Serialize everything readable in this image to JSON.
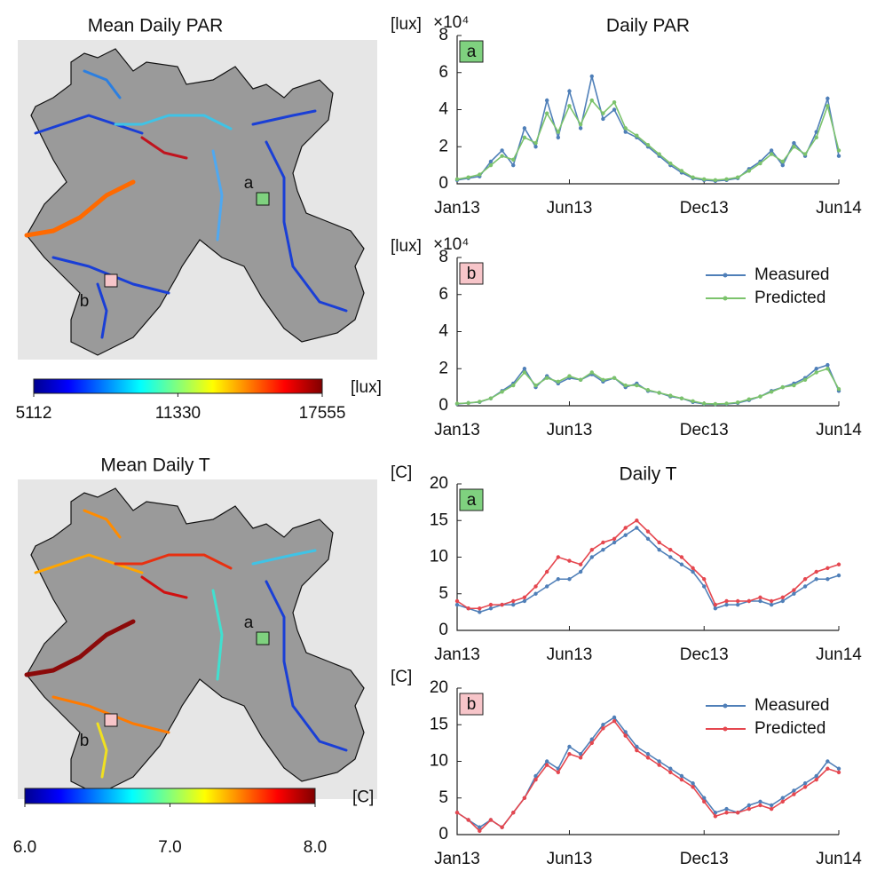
{
  "chart_data": [
    {
      "type": "map",
      "title": "Mean Daily PAR",
      "colorbar_label": "[lux]",
      "clim": [
        5112,
        17555
      ],
      "cticks": [
        5112,
        11330,
        17555
      ],
      "sites": [
        {
          "label": "a",
          "color": "#7fd17f"
        },
        {
          "label": "b",
          "color": "#f7c5c9"
        }
      ]
    },
    {
      "type": "line",
      "title": "Daily PAR",
      "ylabel": "[lux]",
      "y_multiplier": "×10⁴",
      "tag": "a",
      "tag_color": "#7fd17f",
      "x": [
        0,
        0.5,
        1,
        1.5,
        2,
        2.5,
        3,
        3.5,
        4,
        4.5,
        5,
        5.5,
        6,
        6.5,
        7,
        7.5,
        8,
        8.5,
        9,
        9.5,
        10,
        10.5,
        11,
        11.5,
        12,
        12.5,
        13,
        13.5,
        14,
        14.5,
        15,
        15.5,
        16,
        16.5,
        17
      ],
      "xlim": [
        0,
        17
      ],
      "xticks": [
        {
          "value": 0,
          "label": "Jan13"
        },
        {
          "value": 5,
          "label": "Jun13"
        },
        {
          "value": 11,
          "label": "Dec13"
        },
        {
          "value": 17,
          "label": "Jun14"
        }
      ],
      "ylim": [
        0,
        80000
      ],
      "yticks": [
        {
          "value": 0,
          "label": "0"
        },
        {
          "value": 20000,
          "label": "2"
        },
        {
          "value": 40000,
          "label": "4"
        },
        {
          "value": 60000,
          "label": "6"
        },
        {
          "value": 80000,
          "label": "8"
        }
      ],
      "series": [
        {
          "name": "Measured",
          "color": "#4f7fb8",
          "values": [
            2000,
            3000,
            4000,
            12000,
            18000,
            10000,
            30000,
            20000,
            45000,
            25000,
            50000,
            30000,
            58000,
            35000,
            40000,
            28000,
            25000,
            20000,
            15000,
            10000,
            6000,
            3000,
            2000,
            1500,
            2000,
            3000,
            8000,
            12000,
            18000,
            10000,
            22000,
            15000,
            28000,
            46000,
            15000
          ]
        },
        {
          "name": "Predicted",
          "color": "#7cc36c",
          "values": [
            2500,
            3500,
            5000,
            10000,
            15000,
            13000,
            25000,
            22000,
            38000,
            28000,
            42000,
            32000,
            45000,
            38000,
            44000,
            30000,
            26000,
            21000,
            16000,
            11000,
            7000,
            3500,
            2500,
            2000,
            2500,
            3500,
            7000,
            11000,
            16000,
            12000,
            20000,
            16000,
            25000,
            42000,
            18000
          ]
        }
      ]
    },
    {
      "type": "line",
      "ylabel": "[lux]",
      "y_multiplier": "×10⁴",
      "tag": "b",
      "tag_color": "#f7c5c9",
      "legend": "upper right",
      "x": [
        0,
        0.5,
        1,
        1.5,
        2,
        2.5,
        3,
        3.5,
        4,
        4.5,
        5,
        5.5,
        6,
        6.5,
        7,
        7.5,
        8,
        8.5,
        9,
        9.5,
        10,
        10.5,
        11,
        11.5,
        12,
        12.5,
        13,
        13.5,
        14,
        14.5,
        15,
        15.5,
        16,
        16.5,
        17
      ],
      "xlim": [
        0,
        17
      ],
      "xticks": [
        {
          "value": 0,
          "label": "Jan13"
        },
        {
          "value": 5,
          "label": "Jun13"
        },
        {
          "value": 11,
          "label": "Dec13"
        },
        {
          "value": 17,
          "label": "Jun14"
        }
      ],
      "ylim": [
        0,
        80000
      ],
      "yticks": [
        {
          "value": 0,
          "label": "0"
        },
        {
          "value": 20000,
          "label": "2"
        },
        {
          "value": 40000,
          "label": "4"
        },
        {
          "value": 60000,
          "label": "6"
        },
        {
          "value": 80000,
          "label": "8"
        }
      ],
      "series": [
        {
          "name": "Measured",
          "color": "#4f7fb8",
          "values": [
            1000,
            1500,
            2000,
            4000,
            8000,
            12000,
            20000,
            10000,
            16000,
            12000,
            15000,
            14000,
            17000,
            13000,
            15000,
            10000,
            12000,
            8000,
            7000,
            5000,
            4000,
            2000,
            1000,
            800,
            1000,
            1500,
            3000,
            5000,
            8000,
            10000,
            12000,
            15000,
            20000,
            22000,
            8000
          ]
        },
        {
          "name": "Predicted",
          "color": "#7cc36c",
          "values": [
            1200,
            1500,
            2200,
            4000,
            7500,
            11000,
            18000,
            11000,
            15000,
            13000,
            16000,
            14000,
            18000,
            14000,
            15000,
            11000,
            11000,
            8500,
            7000,
            5500,
            4000,
            2500,
            1200,
            1000,
            1200,
            1800,
            3500,
            5000,
            7500,
            10000,
            11000,
            14000,
            18000,
            20000,
            9000
          ]
        }
      ]
    },
    {
      "type": "map",
      "title": "Mean Daily T",
      "colorbar_label": "[C]",
      "clim": [
        6,
        8
      ],
      "cticks": [
        {
          "value": 6,
          "label": "6.0"
        },
        {
          "value": 7,
          "label": "7.0"
        },
        {
          "value": 8,
          "label": "8.0"
        }
      ],
      "sites": [
        {
          "label": "a",
          "color": "#7fd17f"
        },
        {
          "label": "b",
          "color": "#f7c5c9"
        }
      ]
    },
    {
      "type": "line",
      "title": "Daily T",
      "ylabel": "[C]",
      "tag": "a",
      "tag_color": "#7fd17f",
      "x": [
        0,
        0.5,
        1,
        1.5,
        2,
        2.5,
        3,
        3.5,
        4,
        4.5,
        5,
        5.5,
        6,
        6.5,
        7,
        7.5,
        8,
        8.5,
        9,
        9.5,
        10,
        10.5,
        11,
        11.5,
        12,
        12.5,
        13,
        13.5,
        14,
        14.5,
        15,
        15.5,
        16,
        16.5,
        17
      ],
      "xlim": [
        0,
        17
      ],
      "xticks": [
        {
          "value": 0,
          "label": "Jan13"
        },
        {
          "value": 5,
          "label": "Jun13"
        },
        {
          "value": 11,
          "label": "Dec13"
        },
        {
          "value": 17,
          "label": "Jun14"
        }
      ],
      "ylim": [
        0,
        20
      ],
      "yticks": [
        0,
        5,
        10,
        15,
        20
      ],
      "series": [
        {
          "name": "Measured",
          "color": "#4f7fb8",
          "values": [
            3.5,
            3,
            2.5,
            3,
            3.5,
            3.5,
            4,
            5,
            6,
            7,
            7,
            8,
            10,
            11,
            12,
            13,
            14,
            12.5,
            11,
            10,
            9,
            8,
            6,
            3,
            3.5,
            3.5,
            4,
            4,
            3.5,
            4,
            5,
            6,
            7,
            7,
            7.5
          ]
        },
        {
          "name": "Predicted",
          "color": "#e5474f",
          "values": [
            4,
            3,
            3,
            3.5,
            3.5,
            4,
            4.5,
            6,
            8,
            10,
            9.5,
            9,
            11,
            12,
            12.5,
            14,
            15,
            13.5,
            12,
            11,
            10,
            8.5,
            7,
            3.5,
            4,
            4,
            4,
            4.5,
            4,
            4.5,
            5.5,
            7,
            8,
            8.5,
            9
          ]
        }
      ]
    },
    {
      "type": "line",
      "ylabel": "[C]",
      "tag": "b",
      "tag_color": "#f7c5c9",
      "legend": "upper right",
      "x": [
        0,
        0.5,
        1,
        1.5,
        2,
        2.5,
        3,
        3.5,
        4,
        4.5,
        5,
        5.5,
        6,
        6.5,
        7,
        7.5,
        8,
        8.5,
        9,
        9.5,
        10,
        10.5,
        11,
        11.5,
        12,
        12.5,
        13,
        13.5,
        14,
        14.5,
        15,
        15.5,
        16,
        16.5,
        17
      ],
      "xlim": [
        0,
        17
      ],
      "xticks": [
        {
          "value": 0,
          "label": "Jan13"
        },
        {
          "value": 5,
          "label": "Jun13"
        },
        {
          "value": 11,
          "label": "Dec13"
        },
        {
          "value": 17,
          "label": "Jun14"
        }
      ],
      "ylim": [
        0,
        20
      ],
      "yticks": [
        0,
        5,
        10,
        15,
        20
      ],
      "series": [
        {
          "name": "Measured",
          "color": "#4f7fb8",
          "values": [
            3,
            2,
            1,
            2,
            1,
            3,
            5,
            8,
            10,
            9,
            12,
            11,
            13,
            15,
            16,
            14,
            12,
            11,
            10,
            9,
            8,
            7,
            5,
            3,
            3.5,
            3,
            4,
            4.5,
            4,
            5,
            6,
            7,
            8,
            10,
            9
          ]
        },
        {
          "name": "Predicted",
          "color": "#e5474f",
          "values": [
            3,
            2,
            0.5,
            2,
            1,
            3,
            5,
            7.5,
            9.5,
            8.5,
            11,
            10.5,
            12.5,
            14.5,
            15.5,
            13.5,
            11.5,
            10.5,
            9.5,
            8.5,
            7.5,
            6.5,
            4.5,
            2.5,
            3,
            3,
            3.5,
            4,
            3.5,
            4.5,
            5.5,
            6.5,
            7.5,
            9,
            8.5
          ]
        }
      ]
    }
  ]
}
